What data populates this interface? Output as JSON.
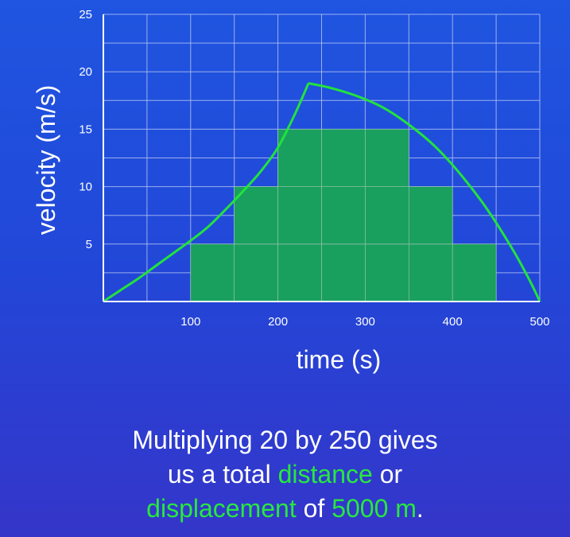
{
  "chart_data": {
    "type": "bar",
    "title": "",
    "xlabel": "time (s)",
    "ylabel": "velocity (m/s)",
    "xlim": [
      0,
      500
    ],
    "ylim": [
      0,
      25
    ],
    "grid": true,
    "x_ticks": [
      100,
      200,
      300,
      400,
      500
    ],
    "y_ticks": [
      5,
      10,
      15,
      20,
      25
    ],
    "bars": [
      {
        "x_start": 100,
        "x_end": 150,
        "value": 5
      },
      {
        "x_start": 150,
        "x_end": 200,
        "value": 10
      },
      {
        "x_start": 200,
        "x_end": 250,
        "value": 15
      },
      {
        "x_start": 250,
        "x_end": 300,
        "value": 15
      },
      {
        "x_start": 300,
        "x_end": 350,
        "value": 15
      },
      {
        "x_start": 350,
        "x_end": 400,
        "value": 10
      },
      {
        "x_start": 400,
        "x_end": 450,
        "value": 5
      }
    ],
    "curve": {
      "type": "line",
      "x": [
        0,
        20,
        40,
        60,
        80,
        100,
        120,
        140,
        160,
        180,
        200,
        220,
        235,
        260,
        290,
        320,
        350,
        380,
        410,
        440,
        470,
        490,
        500
      ],
      "values": [
        0,
        1.0,
        2.0,
        3.1,
        4.2,
        5.3,
        6.5,
        8.0,
        9.6,
        11.3,
        13.4,
        16.4,
        19.0,
        18.6,
        17.9,
        16.9,
        15.4,
        13.5,
        11.0,
        8.0,
        4.4,
        1.6,
        0
      ]
    },
    "colors": {
      "bars": "#1aa05e",
      "curve": "#22e23e",
      "grid": "#b9c7f2",
      "axes": "#ffffff"
    }
  },
  "caption": {
    "line1": "Multiplying 20 by 250 gives",
    "line2_a": "us a total ",
    "line2_b": "distance",
    "line2_c": " or",
    "line3_a": "displacement",
    "line3_b": " of ",
    "line3_c": "5000 m",
    "line3_d": ".",
    "highlight_color": "#27e83f"
  }
}
